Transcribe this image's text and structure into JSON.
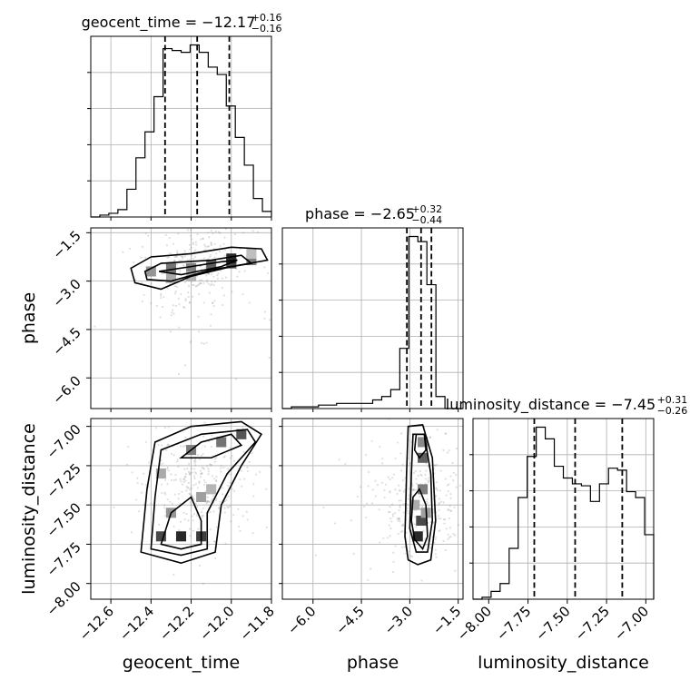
{
  "chart_data": {
    "type": "corner",
    "parameters": [
      {
        "name": "geocent_time",
        "title_prefix": "geocent_time = ",
        "median": "−12.17",
        "plus": "+0.16",
        "minus": "−0.16",
        "range": [
          -12.7,
          -11.8
        ],
        "ticks": [
          -12.6,
          -12.4,
          -12.2,
          -12.0,
          -11.8
        ],
        "tick_labels": [
          "−12.6",
          "−12.4",
          "−12.2",
          "−12.0",
          "−11.8"
        ],
        "quantiles": [
          -12.33,
          -12.17,
          -12.01
        ],
        "hist": {
          "edges": [
            -12.7,
            -12.655,
            -12.61,
            -12.565,
            -12.52,
            -12.475,
            -12.43,
            -12.385,
            -12.34,
            -12.295,
            -12.25,
            -12.205,
            -12.16,
            -12.115,
            -12.07,
            -12.025,
            -11.98,
            -11.935,
            -11.89,
            -11.845,
            -11.8
          ],
          "counts": [
            0,
            1,
            2,
            4,
            15,
            32,
            46,
            65,
            91,
            90,
            89,
            93,
            89,
            81,
            77,
            60,
            43,
            28,
            10,
            3
          ]
        }
      },
      {
        "name": "phase",
        "title_prefix": "phase = ",
        "median": "−2.65",
        "plus": "+0.32",
        "minus": "−0.44",
        "range": [
          -6.95,
          -1.35
        ],
        "ticks": [
          -6.0,
          -4.5,
          -3.0,
          -1.5
        ],
        "tick_labels": [
          "−6.0",
          "−4.5",
          "−3.0",
          "−1.5"
        ],
        "quantiles": [
          -3.09,
          -2.65,
          -2.33
        ],
        "hist": {
          "edges": [
            -6.95,
            -6.67,
            -6.39,
            -6.11,
            -5.83,
            -5.55,
            -5.27,
            -4.99,
            -4.71,
            -4.43,
            -4.15,
            -3.87,
            -3.59,
            -3.31,
            -3.03,
            -2.75,
            -2.47,
            -2.19,
            -1.91,
            -1.63,
            -1.35
          ],
          "counts": [
            0,
            1,
            1,
            1,
            2,
            2,
            3,
            3,
            3,
            3,
            5,
            7,
            11,
            35,
            100,
            97,
            72,
            7,
            0,
            0
          ]
        }
      },
      {
        "name": "luminosity_distance",
        "title_prefix": "luminosity_distance = ",
        "median": "−7.45",
        "plus": "+0.31",
        "minus": "−0.26",
        "range": [
          -8.1,
          -6.95
        ],
        "ticks": [
          -8.0,
          -7.75,
          -7.5,
          -7.25,
          -7.0
        ],
        "tick_labels": [
          "−8.00",
          "−7.75",
          "−7.50",
          "−7.25",
          "−7.00"
        ],
        "quantiles": [
          -7.71,
          -7.45,
          -7.15
        ],
        "hist": {
          "edges": [
            -8.1,
            -8.0425,
            -7.985,
            -7.9275,
            -7.87,
            -7.8125,
            -7.755,
            -7.6975,
            -7.64,
            -7.5825,
            -7.525,
            -7.4675,
            -7.41,
            -7.3525,
            -7.295,
            -7.2375,
            -7.18,
            -7.1225,
            -7.065,
            -7.0075,
            -6.95
          ],
          "counts": [
            0,
            1,
            4,
            8,
            26,
            52,
            73,
            88,
            82,
            68,
            62,
            59,
            58,
            50,
            59,
            67,
            66,
            55,
            52,
            33
          ]
        }
      }
    ],
    "pairs": [
      {
        "x": "geocent_time",
        "y": "phase",
        "cells": [
          {
            "x": -12.4,
            "y": -2.7,
            "shade": 0.45
          },
          {
            "x": -12.3,
            "y": -2.6,
            "shade": 0.6
          },
          {
            "x": -12.3,
            "y": -2.9,
            "shade": 0.35
          },
          {
            "x": -12.2,
            "y": -2.6,
            "shade": 0.55
          },
          {
            "x": -12.1,
            "y": -2.5,
            "shade": 0.7
          },
          {
            "x": -12.0,
            "y": -2.45,
            "shade": 0.8
          },
          {
            "x": -12.0,
            "y": -2.3,
            "shade": 0.95
          },
          {
            "x": -11.9,
            "y": -2.35,
            "shade": 0.55
          },
          {
            "x": -12.2,
            "y": -2.85,
            "shade": 0.3
          },
          {
            "x": -11.9,
            "y": -2.15,
            "shade": 0.25
          }
        ],
        "contours": [
          [
            [
              -12.5,
              -2.6
            ],
            [
              -12.4,
              -2.25
            ],
            [
              -12.2,
              -2.15
            ],
            [
              -12.0,
              -1.95
            ],
            [
              -11.85,
              -2.0
            ],
            [
              -11.82,
              -2.35
            ],
            [
              -12.0,
              -2.55
            ],
            [
              -12.2,
              -2.85
            ],
            [
              -12.35,
              -3.25
            ],
            [
              -12.48,
              -3.05
            ]
          ],
          [
            [
              -12.43,
              -2.7
            ],
            [
              -12.35,
              -2.45
            ],
            [
              -12.1,
              -2.35
            ],
            [
              -11.95,
              -2.2
            ],
            [
              -11.9,
              -2.45
            ],
            [
              -12.1,
              -2.65
            ],
            [
              -12.3,
              -3.0
            ],
            [
              -12.42,
              -2.95
            ]
          ],
          [
            [
              -12.36,
              -2.7
            ],
            [
              -12.2,
              -2.55
            ],
            [
              -12.05,
              -2.4
            ],
            [
              -11.97,
              -2.35
            ],
            [
              -12.05,
              -2.55
            ],
            [
              -12.25,
              -2.8
            ]
          ]
        ]
      },
      {
        "x": "geocent_time",
        "y": "luminosity_distance",
        "cells": [
          {
            "x": -12.35,
            "y": -7.7,
            "shade": 0.8
          },
          {
            "x": -12.25,
            "y": -7.7,
            "shade": 0.95
          },
          {
            "x": -12.15,
            "y": -7.7,
            "shade": 0.85
          },
          {
            "x": -12.3,
            "y": -7.55,
            "shade": 0.45
          },
          {
            "x": -12.15,
            "y": -7.45,
            "shade": 0.4
          },
          {
            "x": -12.35,
            "y": -7.3,
            "shade": 0.35
          },
          {
            "x": -12.2,
            "y": -7.15,
            "shade": 0.55
          },
          {
            "x": -12.05,
            "y": -7.1,
            "shade": 0.6
          },
          {
            "x": -11.95,
            "y": -7.05,
            "shade": 0.75
          },
          {
            "x": -12.1,
            "y": -7.4,
            "shade": 0.3
          }
        ],
        "contours": [
          [
            [
              -12.45,
              -7.8
            ],
            [
              -12.42,
              -7.4
            ],
            [
              -12.38,
              -7.1
            ],
            [
              -12.2,
              -7.0
            ],
            [
              -11.95,
              -6.97
            ],
            [
              -11.85,
              -7.05
            ],
            [
              -11.95,
              -7.25
            ],
            [
              -12.05,
              -7.5
            ],
            [
              -12.08,
              -7.8
            ],
            [
              -12.25,
              -7.87
            ]
          ],
          [
            [
              -12.4,
              -7.78
            ],
            [
              -12.38,
              -7.45
            ],
            [
              -12.35,
              -7.15
            ],
            [
              -12.15,
              -7.05
            ],
            [
              -11.92,
              -7.02
            ],
            [
              -11.88,
              -7.1
            ],
            [
              -12.02,
              -7.3
            ],
            [
              -12.12,
              -7.55
            ],
            [
              -12.12,
              -7.78
            ],
            [
              -12.25,
              -7.82
            ]
          ],
          [
            [
              -12.35,
              -7.75
            ],
            [
              -12.3,
              -7.55
            ],
            [
              -12.2,
              -7.45
            ],
            [
              -12.15,
              -7.6
            ],
            [
              -12.15,
              -7.75
            ],
            [
              -12.25,
              -7.78
            ]
          ],
          [
            [
              -12.25,
              -7.2
            ],
            [
              -12.15,
              -7.1
            ],
            [
              -12.0,
              -7.05
            ],
            [
              -11.95,
              -7.12
            ],
            [
              -12.1,
              -7.2
            ]
          ]
        ]
      },
      {
        "x": "phase",
        "y": "luminosity_distance",
        "cells": [
          {
            "x": -2.75,
            "y": -7.7,
            "shade": 0.95
          },
          {
            "x": -2.65,
            "y": -7.6,
            "shade": 0.8
          },
          {
            "x": -2.6,
            "y": -7.4,
            "shade": 0.55
          },
          {
            "x": -2.6,
            "y": -7.2,
            "shade": 0.7
          },
          {
            "x": -2.6,
            "y": -7.1,
            "shade": 0.5
          },
          {
            "x": -2.85,
            "y": -7.5,
            "shade": 0.35
          },
          {
            "x": -2.5,
            "y": -7.55,
            "shade": 0.4
          }
        ],
        "contours": [
          [
            [
              -3.15,
              -7.7
            ],
            [
              -3.1,
              -7.3
            ],
            [
              -3.05,
              -7.0
            ],
            [
              -2.6,
              -6.99
            ],
            [
              -2.3,
              -7.2
            ],
            [
              -2.2,
              -7.6
            ],
            [
              -2.35,
              -7.85
            ],
            [
              -2.75,
              -7.88
            ],
            [
              -3.05,
              -7.85
            ]
          ],
          [
            [
              -3.0,
              -7.65
            ],
            [
              -2.95,
              -7.3
            ],
            [
              -2.9,
              -7.05
            ],
            [
              -2.55,
              -7.05
            ],
            [
              -2.35,
              -7.3
            ],
            [
              -2.3,
              -7.6
            ],
            [
              -2.45,
              -7.8
            ],
            [
              -2.8,
              -7.8
            ]
          ],
          [
            [
              -2.95,
              -7.6
            ],
            [
              -2.9,
              -7.45
            ],
            [
              -2.7,
              -7.4
            ],
            [
              -2.5,
              -7.5
            ],
            [
              -2.45,
              -7.7
            ],
            [
              -2.6,
              -7.78
            ],
            [
              -2.85,
              -7.72
            ]
          ],
          [
            [
              -2.85,
              -7.15
            ],
            [
              -2.8,
              -7.05
            ],
            [
              -2.55,
              -7.05
            ],
            [
              -2.5,
              -7.15
            ],
            [
              -2.7,
              -7.2
            ]
          ]
        ]
      }
    ]
  }
}
